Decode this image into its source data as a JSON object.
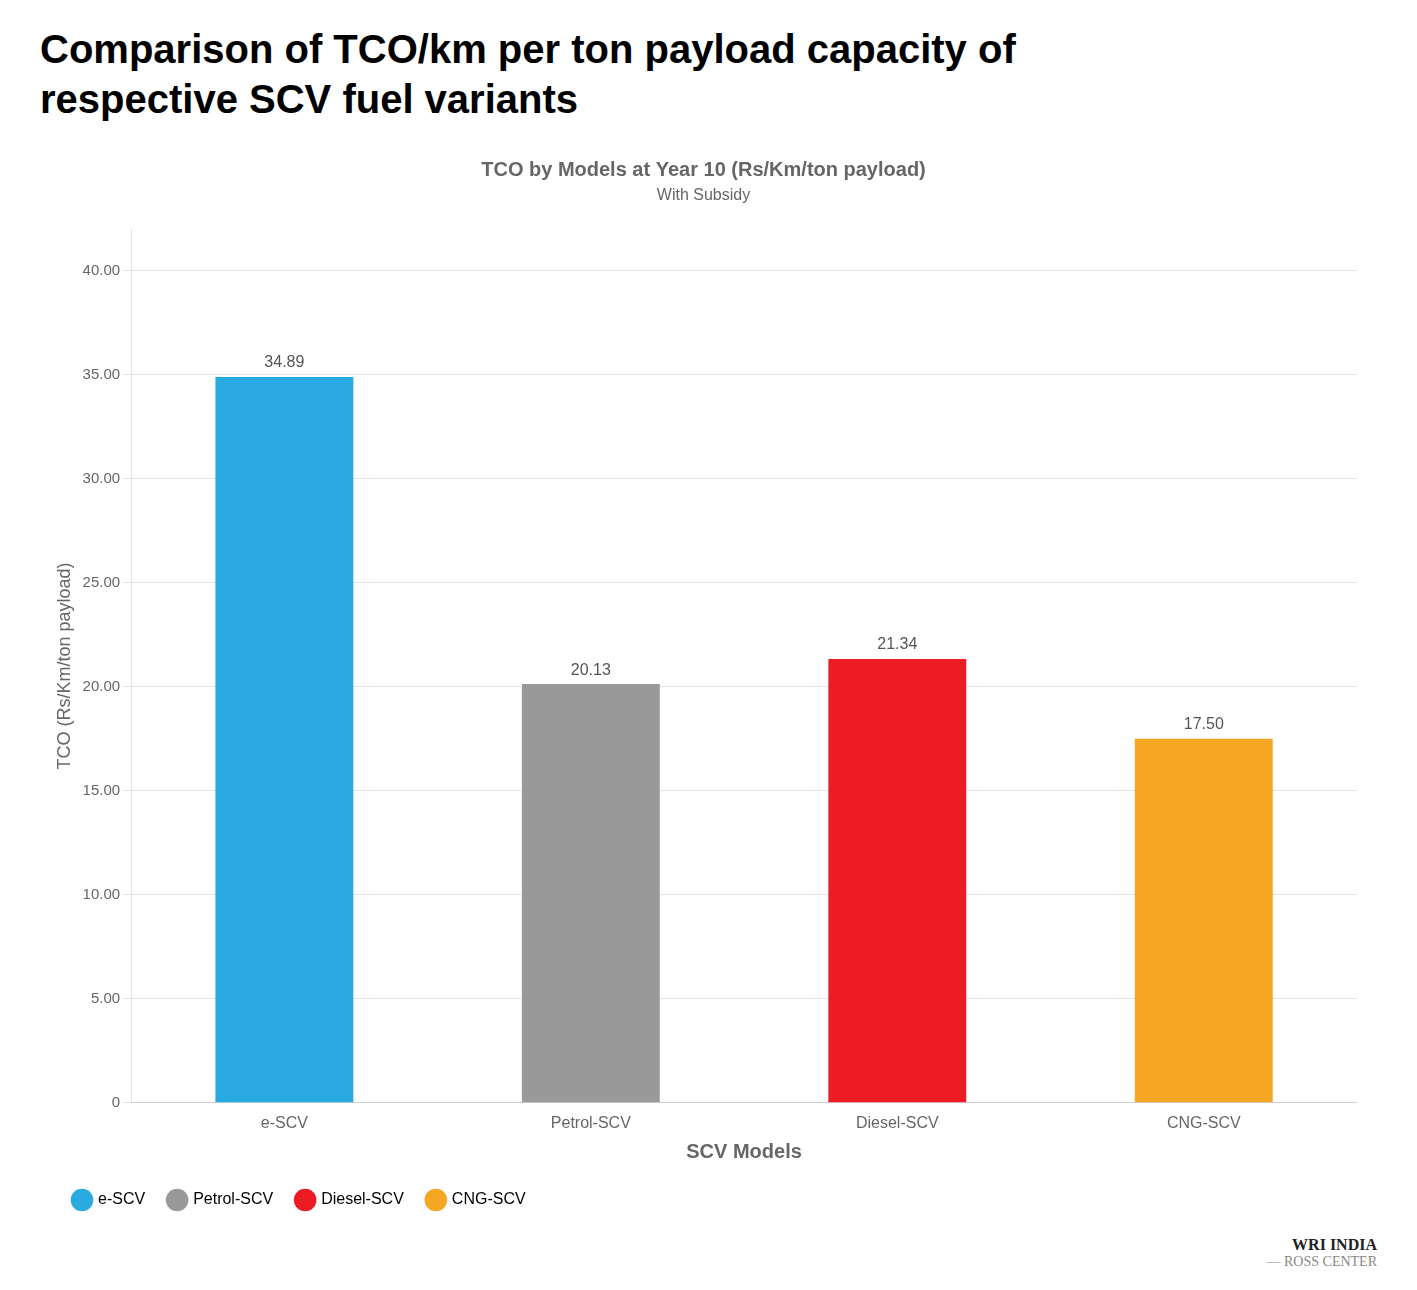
{
  "chart_data": {
    "type": "bar",
    "title": "Comparison of TCO/km per ton payload capacity of\nrespective SCV fuel variants",
    "chart_title": "TCO by Models at Year 10 (Rs/Km/ton payload)",
    "subtitle": "With Subsidy",
    "x_label": "SCV Models",
    "y_label": "TCO (Rs/Km/ton payload)",
    "categories": [
      "e-SCV",
      "Petrol-SCV",
      "Diesel-SCV",
      "CNG-SCV"
    ],
    "values": [
      34.89,
      20.13,
      21.34,
      17.5
    ],
    "value_labels": [
      "34.89",
      "20.13",
      "21.34",
      "17.50"
    ],
    "data_labels": true,
    "colors": [
      "#29ABE2",
      "#999999",
      "#ED1C24",
      "#F5A623"
    ],
    "ylim": [
      0,
      42
    ],
    "yticks": [
      0,
      {
        "value": 5,
        "label": "5.00"
      },
      {
        "value": 10,
        "label": "10.00"
      },
      {
        "value": 15,
        "label": "15.00"
      },
      {
        "value": 20,
        "label": "20.00"
      },
      {
        "value": 25,
        "label": "25.00"
      },
      {
        "value": 30,
        "label": "30.00"
      },
      {
        "value": 35,
        "label": "35.00"
      },
      {
        "value": 40,
        "label": "40.00"
      }
    ],
    "grid": true,
    "legend": "bottom",
    "annotations": [
      "WRI INDIA",
      "— ROSS CENTER"
    ]
  }
}
